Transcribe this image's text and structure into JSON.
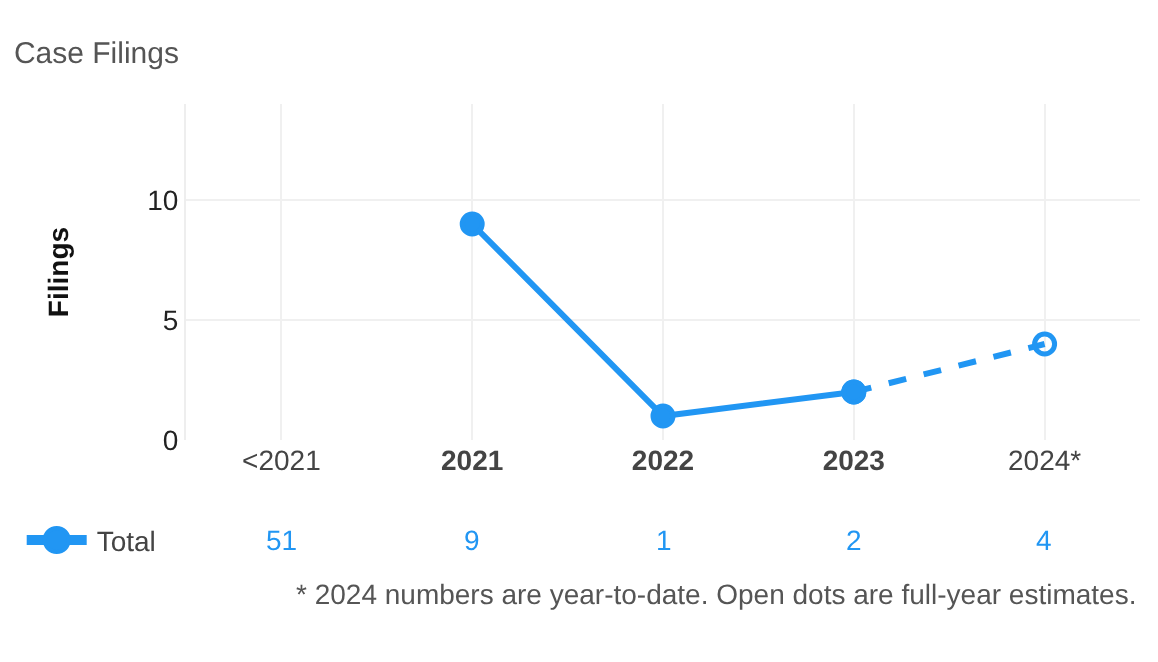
{
  "chart_data": {
    "type": "line",
    "title": "Case Filings",
    "ylabel": "Filings",
    "categories": [
      "<2021",
      "2021",
      "2022",
      "2023",
      "2024*"
    ],
    "series": [
      {
        "name": "Total",
        "color": "#2196f3",
        "values": [
          null,
          9,
          1,
          2,
          null
        ],
        "value_labels": [
          "51",
          "9",
          "1",
          "2",
          "4"
        ],
        "marker": "circle",
        "line_style": "solid"
      },
      {
        "color": "#2196f3",
        "values": [
          null,
          null,
          null,
          2,
          4
        ],
        "marker": "circle-open",
        "line_style": "dashed"
      }
    ],
    "ylim": [
      0,
      14
    ],
    "yticks": [
      0,
      5,
      10
    ],
    "grid": true,
    "legend": "bottom left",
    "annotations": [
      "* 2024 numbers are year-to-date. Open dots are full-year estimates."
    ]
  }
}
